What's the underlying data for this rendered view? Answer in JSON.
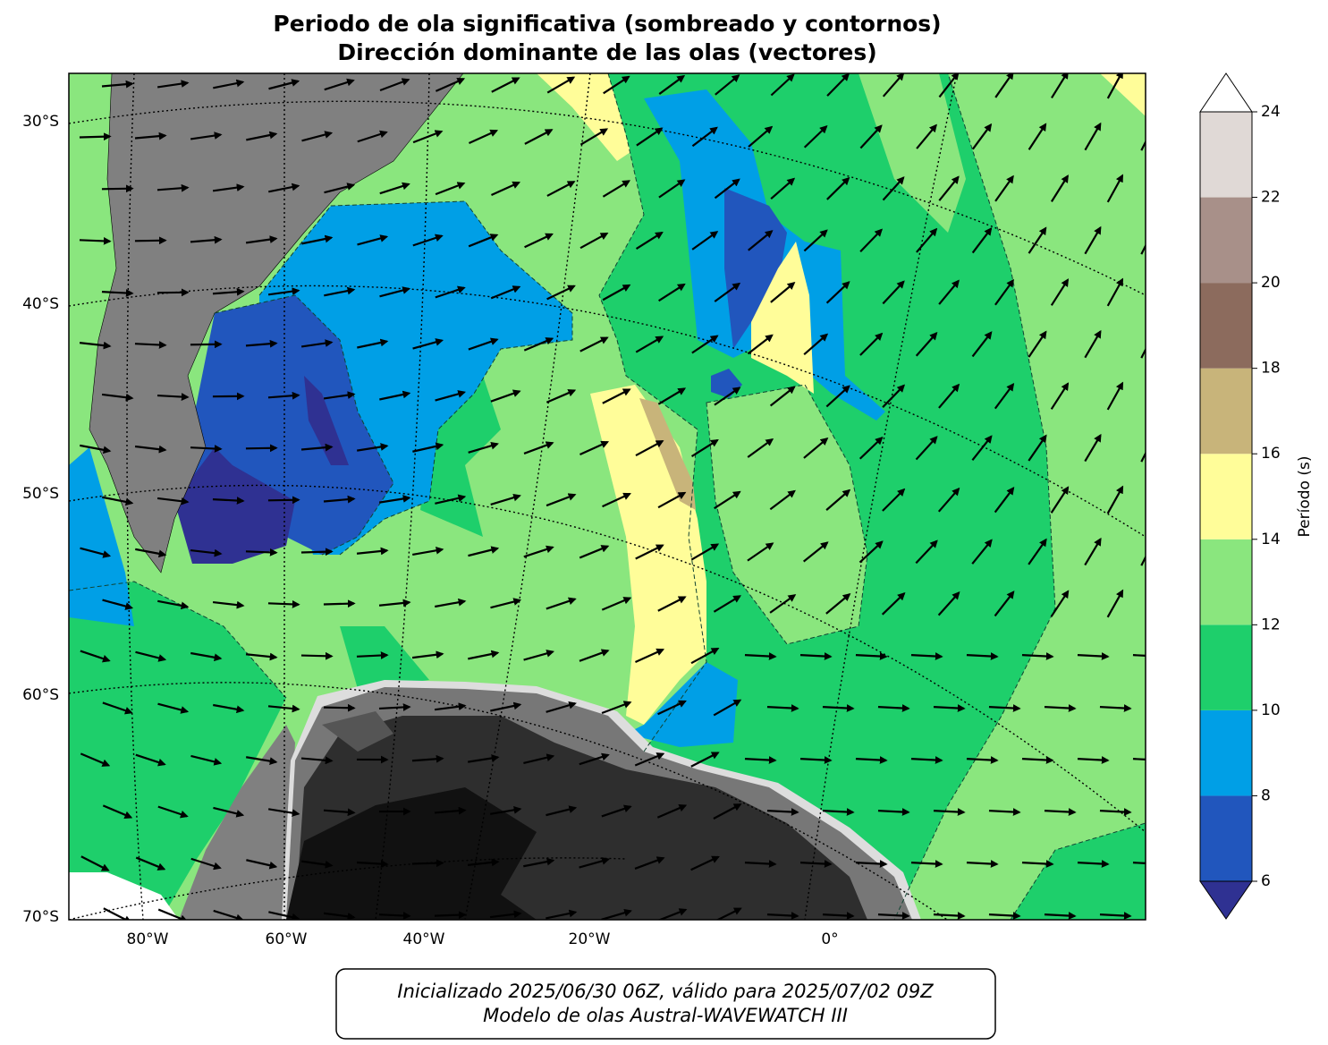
{
  "title": [
    "Periodo de ola significativa (sombreado y contornos)",
    "Dirección dominante de las olas (vectores)"
  ],
  "map": {
    "lat_labels": [
      "30°S",
      "40°S",
      "50°S",
      "60°S",
      "70°S"
    ],
    "lon_labels": [
      "80°W",
      "60°W",
      "40°W",
      "20°W",
      "0°"
    ]
  },
  "colorbar": {
    "label": "Período (s)",
    "ticks": [
      6,
      8,
      10,
      12,
      14,
      16,
      18,
      20,
      22,
      24
    ],
    "colors": [
      "#2156bd",
      "#009fe6",
      "#1ecf6b",
      "#8ae67e",
      "#fffd99",
      "#c8b47a",
      "#8c6b5d",
      "#a89089",
      "#e0d9d6"
    ],
    "under_color": "#2f3192",
    "over_color": "#ffffff"
  },
  "footer": [
    "Inicializado 2025/06/30 06Z, válido para 2025/07/02 09Z",
    "Modelo de olas Austral-WAVEWATCH III"
  ]
}
